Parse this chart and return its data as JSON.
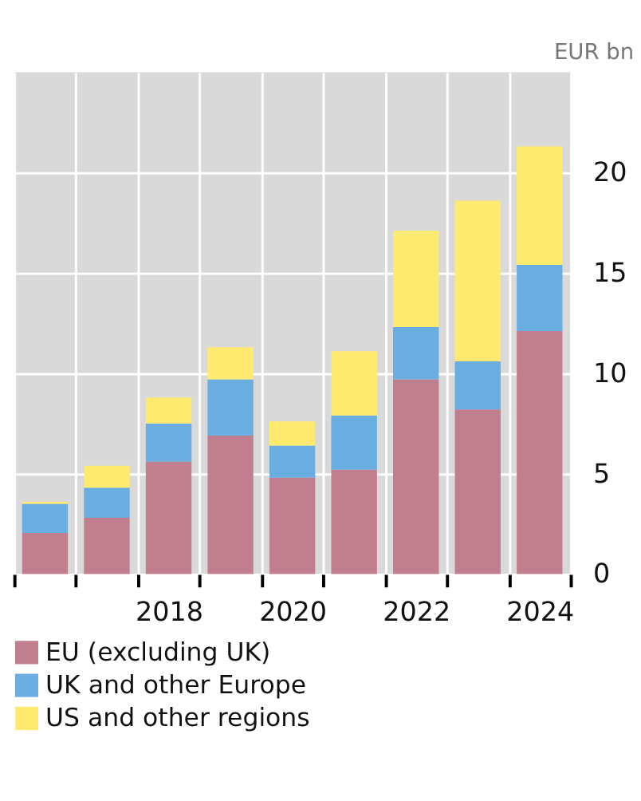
{
  "chart_data": {
    "type": "bar",
    "stacked": true,
    "ylabel": "EUR bn",
    "categories": [
      null,
      null,
      "2018",
      null,
      "2020",
      null,
      "2022",
      null,
      "2024"
    ],
    "series": [
      {
        "name": "EU (excluding UK)",
        "color": "#c17e8e",
        "values": [
          2.05,
          2.8,
          5.6,
          6.9,
          4.8,
          5.2,
          9.7,
          8.2,
          12.1
        ]
      },
      {
        "name": "UK and other Europe",
        "color": "#6aade0",
        "values": [
          1.45,
          1.5,
          1.9,
          2.8,
          1.6,
          2.7,
          2.6,
          2.4,
          3.3
        ]
      },
      {
        "name": "US and other regions",
        "color": "#ffea70",
        "values": [
          0.1,
          1.1,
          1.3,
          1.6,
          1.2,
          3.2,
          4.8,
          8.0,
          5.9
        ]
      }
    ],
    "ylim": [
      0,
      25
    ],
    "yticks": [
      0,
      5,
      10,
      15,
      20
    ],
    "grid": true,
    "legend": "bottom"
  }
}
